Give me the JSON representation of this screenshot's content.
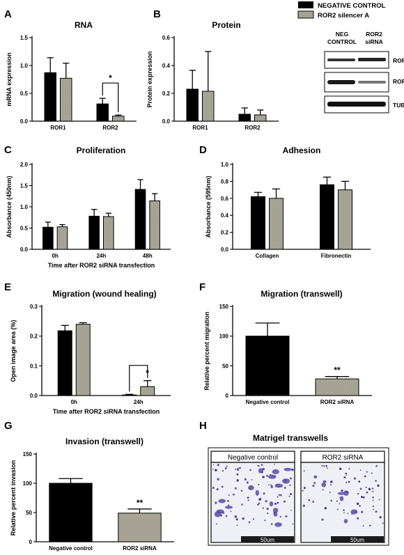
{
  "legend": {
    "entries": [
      {
        "label": "NEGATIVE CONTROL",
        "color": "#000000"
      },
      {
        "label": "ROR2 silencer A",
        "color": "#a9a697"
      }
    ]
  },
  "colors": {
    "control": "#000000",
    "silencer": "#a9a697"
  },
  "chart_data": [
    {
      "panel": "A",
      "type": "bar",
      "title": "RNA",
      "ylabel": "mRNA expression",
      "xlabel": "",
      "ylim": [
        0,
        1.5
      ],
      "yticks": [
        "0.0",
        "0.5",
        "1.0",
        "1.5"
      ],
      "categories": [
        "ROR1",
        "ROR2"
      ],
      "series": [
        {
          "name": "NEGATIVE CONTROL",
          "values": [
            0.87,
            0.31
          ],
          "errors": [
            0.27,
            0.1
          ]
        },
        {
          "name": "ROR2 silencer A",
          "values": [
            0.77,
            0.09
          ],
          "errors": [
            0.27,
            0.02
          ]
        }
      ],
      "significance": [
        {
          "category": 1,
          "label": "*"
        }
      ]
    },
    {
      "panel": "B",
      "type": "bar",
      "title": "Protein",
      "ylabel": "Protein expression",
      "xlabel": "",
      "ylim": [
        0,
        0.6
      ],
      "yticks": [
        "0.0",
        "0.2",
        "0.4",
        "0.6"
      ],
      "categories": [
        "ROR1",
        "ROR2"
      ],
      "series": [
        {
          "name": "NEGATIVE CONTROL",
          "values": [
            0.23,
            0.05
          ],
          "errors": [
            0.135,
            0.045
          ]
        },
        {
          "name": "ROR2 silencer A",
          "values": [
            0.215,
            0.045
          ],
          "errors": [
            0.285,
            0.035
          ]
        }
      ],
      "significance": []
    },
    {
      "panel": "C",
      "type": "bar",
      "title": "Proliferation",
      "ylabel": "Absorbance (450nm)",
      "xlabel": "Time after ROR2 siRNA transfection",
      "ylim": [
        0,
        2.0
      ],
      "yticks": [
        "0.0",
        "0.5",
        "1.0",
        "1.5",
        "2.0"
      ],
      "categories": [
        "0h",
        "24h",
        "48h"
      ],
      "series": [
        {
          "name": "NEGATIVE CONTROL",
          "values": [
            0.52,
            0.78,
            1.41
          ],
          "errors": [
            0.12,
            0.16,
            0.23
          ]
        },
        {
          "name": "ROR2 silencer A",
          "values": [
            0.53,
            0.77,
            1.14
          ],
          "errors": [
            0.05,
            0.08,
            0.17
          ]
        }
      ],
      "significance": []
    },
    {
      "panel": "D",
      "type": "bar",
      "title": "Adhesion",
      "ylabel": "Absorbance (595nm)",
      "xlabel": "",
      "ylim": [
        0,
        1.0
      ],
      "yticks": [
        "0.0",
        "0.2",
        "0.4",
        "0.6",
        "0.8",
        "1.0"
      ],
      "categories": [
        "Collagen",
        "Fibronectin"
      ],
      "series": [
        {
          "name": "NEGATIVE CONTROL",
          "values": [
            0.62,
            0.76
          ],
          "errors": [
            0.05,
            0.09
          ]
        },
        {
          "name": "ROR2 silencer A",
          "values": [
            0.6,
            0.7
          ],
          "errors": [
            0.11,
            0.1
          ]
        }
      ],
      "significance": []
    },
    {
      "panel": "E",
      "type": "bar",
      "title": "Migration (wound healing)",
      "ylabel": "Open image area (%)",
      "xlabel": "Time after ROR2 siRNA transfection",
      "ylim": [
        0,
        0.3
      ],
      "yticks": [
        "0.0",
        "0.1",
        "0.2",
        "0.3"
      ],
      "categories": [
        "0h",
        "24h"
      ],
      "series": [
        {
          "name": "NEGATIVE CONTROL",
          "values": [
            0.218,
            0.002
          ],
          "errors": [
            0.018,
            0.002
          ]
        },
        {
          "name": "ROR2 silencer A",
          "values": [
            0.24,
            0.03
          ],
          "errors": [
            0.005,
            0.02
          ]
        }
      ],
      "significance": [
        {
          "category": 1,
          "label": "*"
        }
      ]
    },
    {
      "panel": "F",
      "type": "bar",
      "title": "Migration (transwell)",
      "ylabel": "Relative percent migration",
      "xlabel": "",
      "ylim": [
        0,
        150
      ],
      "yticks": [
        "0",
        "50",
        "100",
        "150"
      ],
      "categories": [
        "Negative control",
        "ROR2 siRNA"
      ],
      "series": [
        {
          "name": "",
          "values": [
            100,
            28
          ],
          "errors": [
            22,
            4
          ]
        }
      ],
      "significance": [
        {
          "category": 1,
          "label": "**"
        }
      ]
    },
    {
      "panel": "G",
      "type": "bar",
      "title": "Invasion (transwell)",
      "ylabel": "Relative percent invasion",
      "xlabel": "",
      "ylim": [
        0,
        150
      ],
      "yticks": [
        "0",
        "50",
        "100",
        "150"
      ],
      "categories": [
        "Negative control",
        "ROR2 siRNA"
      ],
      "series": [
        {
          "name": "",
          "values": [
            100,
            49
          ],
          "errors": [
            8,
            7
          ]
        }
      ],
      "significance": [
        {
          "category": 1,
          "label": "**"
        }
      ]
    }
  ],
  "blot": {
    "columns": [
      "NEG\nCONTROL",
      "ROR2\nsiRNA"
    ],
    "rows": [
      "ROR1",
      "ROR2",
      "TUB"
    ]
  },
  "matrigel": {
    "panel": "H",
    "title": "Matrigel transwells",
    "images": [
      {
        "label": "Negative control",
        "scale": "50um"
      },
      {
        "label": "ROR2 siRNA",
        "scale": "50um"
      }
    ]
  }
}
